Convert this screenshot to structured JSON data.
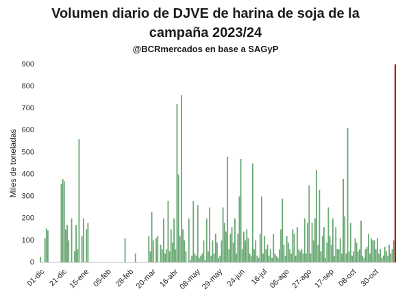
{
  "chart_data": {
    "type": "bar",
    "title": "Volumen diario de DJVE de harina de soja de la campaña 2023/24",
    "subtitle": "@BCRmercados en base a SAGyP",
    "y_label": "Miles de toneladas",
    "color": "#6aa874",
    "ylim": [
      0,
      900
    ],
    "yticks": [
      0,
      100,
      200,
      300,
      400,
      500,
      600,
      700,
      800,
      900
    ],
    "grid": false,
    "marker": {
      "value": 900,
      "color": "#c00000"
    },
    "categories": [
      "01-dic",
      null,
      null,
      null,
      null,
      null,
      null,
      null,
      null,
      null,
      null,
      null,
      null,
      null,
      null,
      "21-dic",
      null,
      null,
      null,
      null,
      null,
      null,
      null,
      null,
      null,
      null,
      null,
      null,
      null,
      null,
      "15-ene",
      null,
      null,
      null,
      null,
      null,
      null,
      null,
      null,
      null,
      null,
      null,
      null,
      null,
      null,
      "05-feb",
      null,
      null,
      null,
      null,
      null,
      null,
      null,
      null,
      null,
      null,
      null,
      null,
      null,
      null,
      "28-feb",
      null,
      null,
      null,
      null,
      null,
      null,
      null,
      null,
      null,
      null,
      null,
      null,
      null,
      null,
      "20-mar",
      null,
      null,
      null,
      null,
      null,
      null,
      null,
      null,
      null,
      null,
      null,
      null,
      null,
      null,
      "16-abr",
      null,
      null,
      null,
      null,
      null,
      null,
      null,
      null,
      null,
      null,
      null,
      null,
      null,
      null,
      "08-may",
      null,
      null,
      null,
      null,
      null,
      null,
      null,
      null,
      null,
      null,
      null,
      null,
      null,
      null,
      "29-may",
      null,
      null,
      null,
      null,
      null,
      null,
      null,
      null,
      null,
      null,
      null,
      null,
      null,
      null,
      "24-jun",
      null,
      null,
      null,
      null,
      null,
      null,
      null,
      null,
      null,
      null,
      null,
      null,
      null,
      null,
      "16-jul",
      null,
      null,
      null,
      null,
      null,
      null,
      null,
      null,
      null,
      null,
      null,
      null,
      null,
      null,
      "06-ago",
      null,
      null,
      null,
      null,
      null,
      null,
      null,
      null,
      null,
      null,
      null,
      null,
      null,
      null,
      "27-ago",
      null,
      null,
      null,
      null,
      null,
      null,
      null,
      null,
      null,
      null,
      null,
      null,
      null,
      null,
      "17-sep",
      null,
      null,
      null,
      null,
      null,
      null,
      null,
      null,
      null,
      null,
      null,
      null,
      null,
      null,
      "08-oct",
      null,
      null,
      null,
      null,
      null,
      null,
      null,
      null,
      null,
      null,
      null,
      null,
      null,
      null,
      "30-oct",
      null,
      null,
      null,
      null,
      null,
      null,
      null,
      null,
      null,
      null,
      null,
      null,
      null,
      null
    ],
    "values": [
      25,
      0,
      0,
      110,
      155,
      145,
      0,
      0,
      0,
      0,
      0,
      0,
      0,
      0,
      355,
      380,
      370,
      150,
      170,
      100,
      0,
      200,
      0,
      50,
      170,
      60,
      560,
      0,
      120,
      200,
      0,
      150,
      180,
      0,
      0,
      0,
      0,
      0,
      0,
      0,
      0,
      0,
      0,
      0,
      0,
      0,
      0,
      0,
      0,
      0,
      0,
      0,
      0,
      0,
      0,
      0,
      0,
      110,
      0,
      0,
      0,
      0,
      0,
      0,
      40,
      0,
      0,
      0,
      0,
      0,
      0,
      0,
      0,
      120,
      50,
      230,
      100,
      0,
      110,
      120,
      0,
      80,
      60,
      200,
      40,
      60,
      280,
      50,
      150,
      90,
      200,
      60,
      720,
      400,
      120,
      760,
      150,
      100,
      50,
      0,
      200,
      10,
      30,
      280,
      40,
      30,
      260,
      20,
      30,
      40,
      100,
      10,
      200,
      50,
      250,
      30,
      100,
      40,
      130,
      90,
      20,
      30,
      100,
      250,
      180,
      140,
      480,
      60,
      130,
      160,
      90,
      200,
      40,
      130,
      300,
      470,
      60,
      140,
      100,
      150,
      110,
      40,
      30,
      450,
      60,
      100,
      30,
      20,
      130,
      300,
      40,
      120,
      60,
      80,
      30,
      60,
      20,
      130,
      40,
      30,
      20,
      60,
      150,
      290,
      80,
      30,
      120,
      90,
      60,
      40,
      150,
      130,
      30,
      160,
      60,
      50,
      60,
      40,
      200,
      40,
      180,
      350,
      40,
      180,
      100,
      200,
      420,
      80,
      330,
      50,
      120,
      160,
      20,
      90,
      250,
      120,
      80,
      200,
      30,
      160,
      60,
      60,
      110,
      40,
      380,
      210,
      40,
      610,
      50,
      180,
      30,
      50,
      110,
      90,
      50,
      60,
      190,
      30,
      20,
      60,
      70,
      130,
      40,
      110,
      100,
      100,
      60,
      110,
      40,
      60,
      20,
      30,
      70,
      50,
      30,
      80,
      40,
      60,
      100,
      0
    ]
  }
}
